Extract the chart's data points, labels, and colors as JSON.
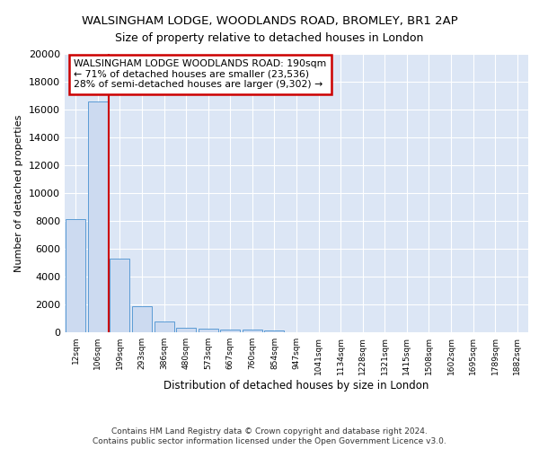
{
  "title": "WALSINGHAM LODGE, WOODLANDS ROAD, BROMLEY, BR1 2AP",
  "subtitle": "Size of property relative to detached houses in London",
  "xlabel": "Distribution of detached houses by size in London",
  "ylabel": "Number of detached properties",
  "footnote1": "Contains HM Land Registry data © Crown copyright and database right 2024.",
  "footnote2": "Contains public sector information licensed under the Open Government Licence v3.0.",
  "bin_labels": [
    "12sqm",
    "106sqm",
    "199sqm",
    "293sqm",
    "386sqm",
    "480sqm",
    "573sqm",
    "667sqm",
    "760sqm",
    "854sqm",
    "947sqm",
    "1041sqm",
    "1134sqm",
    "1228sqm",
    "1321sqm",
    "1415sqm",
    "1508sqm",
    "1602sqm",
    "1695sqm",
    "1789sqm",
    "1882sqm"
  ],
  "bar_heights": [
    8100,
    16600,
    5300,
    1850,
    750,
    310,
    230,
    195,
    185,
    155,
    0,
    0,
    0,
    0,
    0,
    0,
    0,
    0,
    0,
    0,
    0
  ],
  "bar_color": "#ccdaf0",
  "bar_edge_color": "#5b9bd5",
  "vline_color": "#cc0000",
  "annotation_text": "WALSINGHAM LODGE WOODLANDS ROAD: 190sqm\n← 71% of detached houses are smaller (23,536)\n28% of semi-detached houses are larger (9,302) →",
  "annotation_box_color": "#ffffff",
  "annotation_box_edge": "#cc0000",
  "ylim": [
    0,
    20000
  ],
  "yticks": [
    0,
    2000,
    4000,
    6000,
    8000,
    10000,
    12000,
    14000,
    16000,
    18000,
    20000
  ],
  "background_color": "#ffffff",
  "plot_background": "#dce6f5"
}
